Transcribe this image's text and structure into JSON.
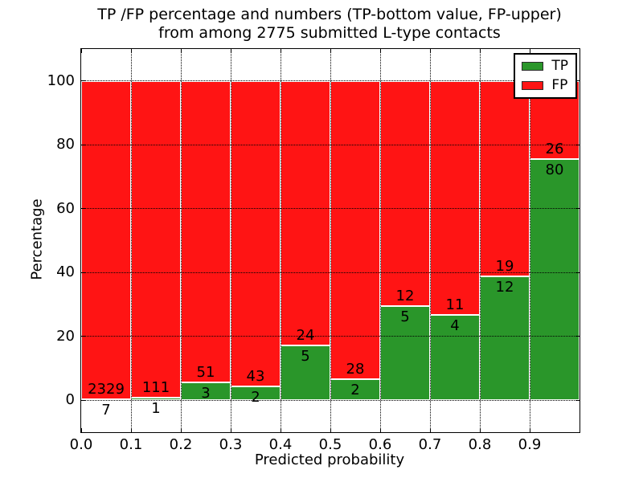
{
  "figure": {
    "title_line1": "TP /FP percentage and numbers (TP-bottom value, FP-upper)",
    "title_line2": "from among 2775 submitted L-type contacts",
    "xlabel": "Predicted probability",
    "ylabel": "Percentage"
  },
  "legend": {
    "items": [
      {
        "label": "TP",
        "color": "#2a962a"
      },
      {
        "label": "FP",
        "color": "#ff1414"
      }
    ]
  },
  "colors": {
    "background": "#ffffff",
    "tp_green": "#2a962a",
    "fp_red": "#ff1414",
    "bar_edge": "#ffffff",
    "grid": "#000000",
    "text": "#000000"
  },
  "chart_data": {
    "type": "bar",
    "stacked": true,
    "title": "TP /FP percentage and numbers (TP-bottom value, FP-upper) from among 2775 submitted L-type contacts",
    "xlabel": "Predicted probability",
    "ylabel": "Percentage",
    "total_contacts": 2775,
    "xlim": [
      0.0,
      1.0
    ],
    "ylim": [
      -10,
      110
    ],
    "bin_width": 0.1,
    "bin_starts": [
      0.0,
      0.1,
      0.2,
      0.3,
      0.4,
      0.5,
      0.6,
      0.7,
      0.8,
      0.9
    ],
    "x_tick_labels": [
      "0.0",
      "0.1",
      "0.2",
      "0.3",
      "0.4",
      "0.5",
      "0.6",
      "0.7",
      "0.8",
      "0.9"
    ],
    "y_ticks": [
      0,
      20,
      40,
      60,
      80,
      100
    ],
    "grid": "dotted black on both axes",
    "legend_position": "upper right",
    "series": [
      {
        "name": "TP",
        "color": "#2a962a",
        "counts": [
          7,
          1,
          3,
          2,
          5,
          2,
          5,
          4,
          12,
          80
        ],
        "percent": [
          0.3,
          0.89,
          5.56,
          4.44,
          17.24,
          6.67,
          29.41,
          26.67,
          38.71,
          75.47
        ]
      },
      {
        "name": "FP",
        "color": "#ff1414",
        "counts": [
          2329,
          111,
          51,
          43,
          24,
          28,
          12,
          11,
          19,
          26
        ],
        "percent": [
          99.7,
          99.11,
          94.44,
          95.56,
          82.76,
          93.33,
          70.59,
          73.33,
          61.29,
          24.53
        ]
      }
    ]
  }
}
